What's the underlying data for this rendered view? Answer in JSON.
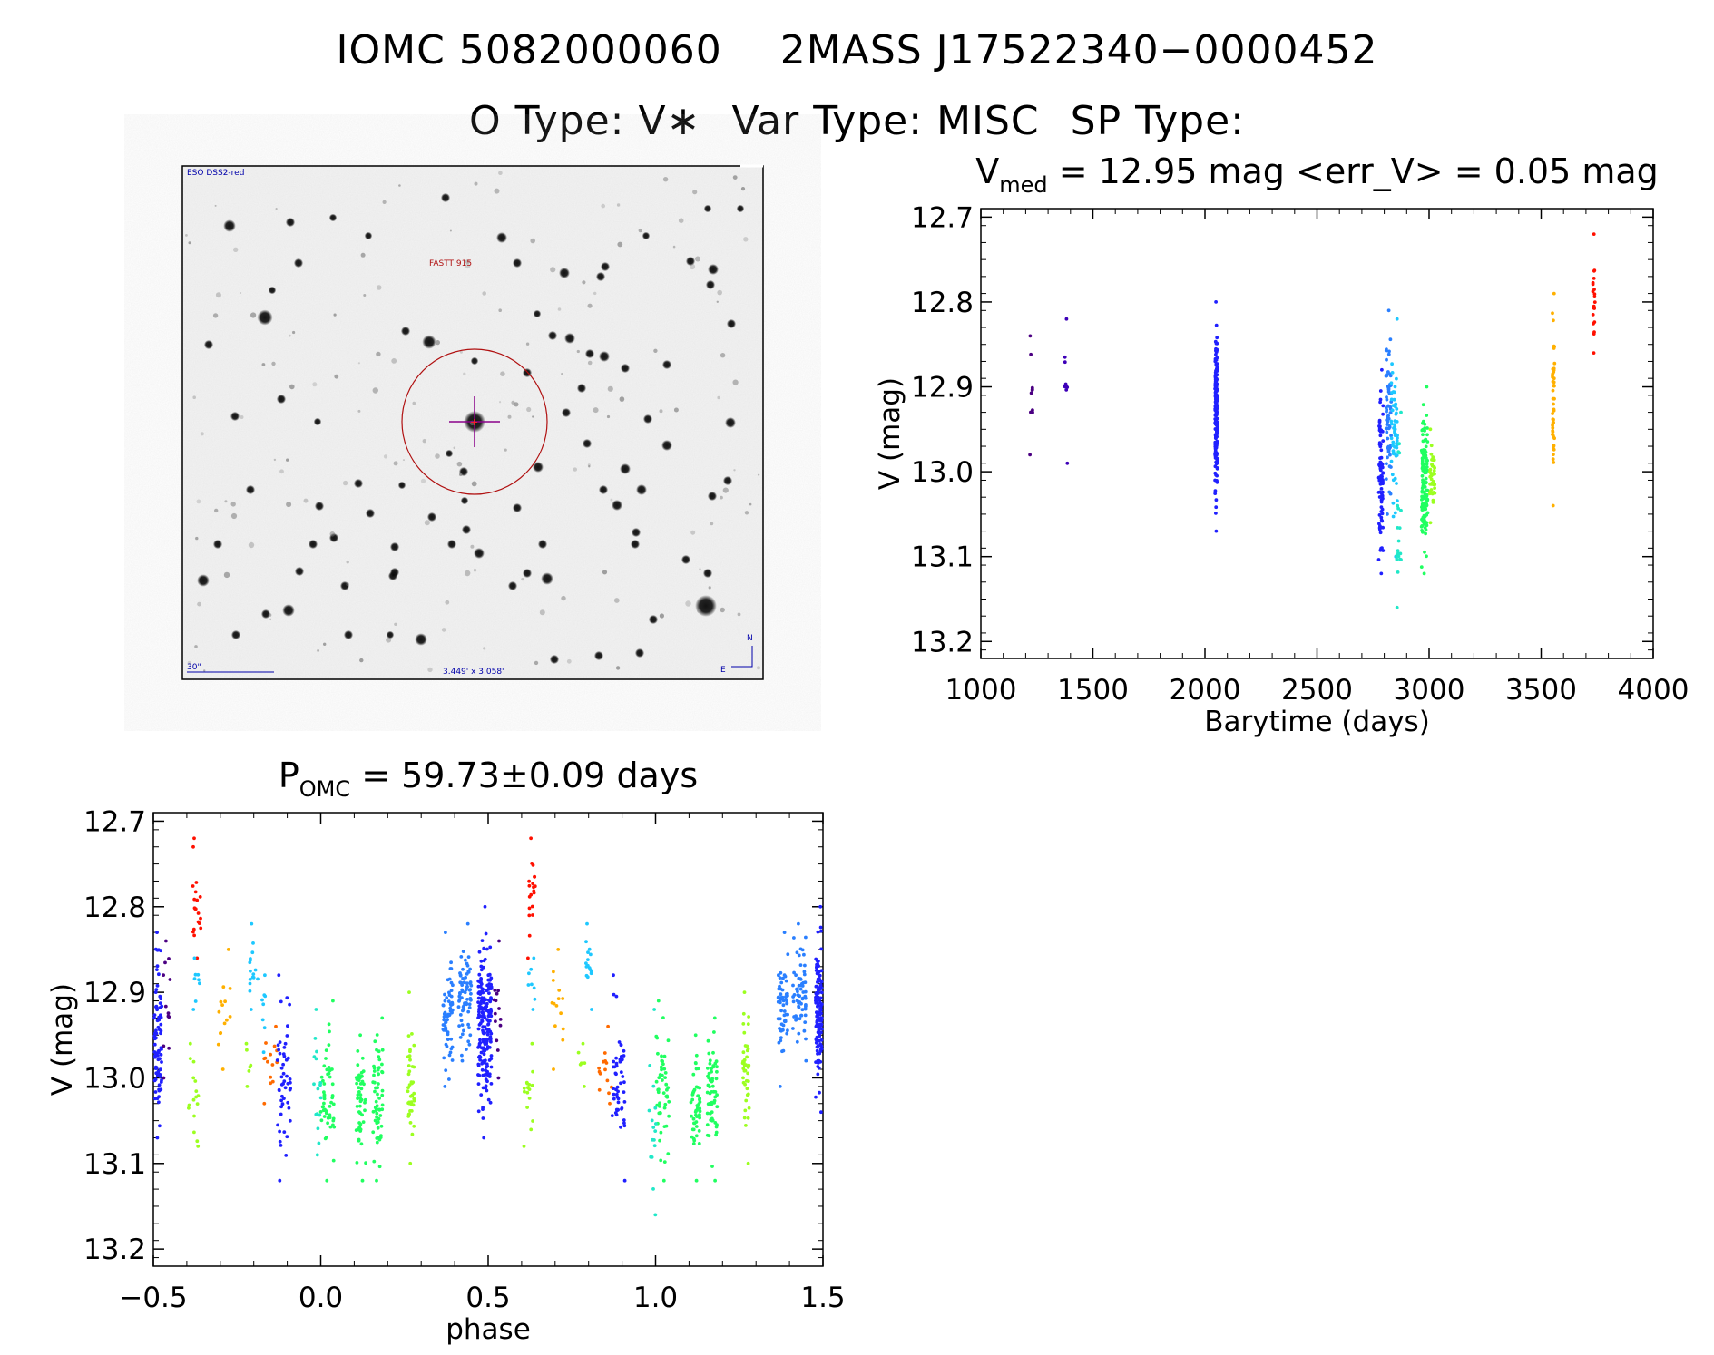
{
  "header": {
    "title_id": "IOMC 5082000060",
    "title_2mass": "2MASS J17522340−0000452",
    "otype": "O Type: V∗",
    "vartype": "Var Type: MISC",
    "sptype": "SP Type:"
  },
  "finder": {
    "survey_label": "ESO DSS2-red",
    "target_label": "FASTT 915",
    "scale_label": "30\"",
    "fov_label": "3.449' x 3.058'",
    "north_label": "N",
    "east_label": "E"
  },
  "colors": {
    "ramp": [
      "#4b0082",
      "#3d00b8",
      "#2020ff",
      "#2a7fff",
      "#1ec8ff",
      "#20e8c8",
      "#20ff60",
      "#9cff20",
      "#ffb000",
      "#ff6a00",
      "#ff1000"
    ],
    "circle": "#b01010",
    "crosshair": "#8a008a",
    "label_blue": "#0000aa"
  },
  "chart_data": [
    {
      "type": "scatter",
      "title_main": "V",
      "title_sub": "med",
      "title_rest": " =  12.95 mag <err_V> =  0.05 mag",
      "xlabel": "Barytime (days)",
      "ylabel": "V (mag)",
      "xlim": [
        1000,
        4000
      ],
      "ylim": [
        13.22,
        12.69
      ],
      "xticks": [
        1000,
        1500,
        2000,
        2500,
        3000,
        3500,
        4000
      ],
      "xticklabels": [
        "1000",
        "1500",
        "2000",
        "2500",
        "3000",
        "3500",
        "4000"
      ],
      "yticks": [
        12.7,
        12.8,
        12.9,
        13.0,
        13.1,
        13.2
      ],
      "yticklabels": [
        "12.7",
        "12.8",
        "12.9",
        "13.0",
        "13.1",
        "13.2"
      ],
      "groups": [
        {
          "x": 1225,
          "xw": 6,
          "ymin": 12.84,
          "ymax": 12.98,
          "n": 10,
          "c": 0
        },
        {
          "x": 1380,
          "xw": 6,
          "ymin": 12.82,
          "ymax": 12.99,
          "n": 10,
          "c": 1
        },
        {
          "x": 2050,
          "xw": 5,
          "ymin": 12.8,
          "ymax": 13.07,
          "n": 200,
          "c": 2
        },
        {
          "x": 2785,
          "xw": 10,
          "ymin": 12.88,
          "ymax": 13.12,
          "n": 90,
          "c": 2
        },
        {
          "x": 2820,
          "xw": 12,
          "ymin": 12.81,
          "ymax": 13.05,
          "n": 70,
          "c": 3
        },
        {
          "x": 2845,
          "xw": 14,
          "ymin": 12.82,
          "ymax": 13.1,
          "n": 60,
          "c": 4
        },
        {
          "x": 2865,
          "xw": 10,
          "ymin": 12.93,
          "ymax": 13.16,
          "n": 20,
          "c": 5
        },
        {
          "x": 2980,
          "xw": 14,
          "ymin": 12.9,
          "ymax": 13.12,
          "n": 120,
          "c": 6
        },
        {
          "x": 3015,
          "xw": 12,
          "ymin": 12.95,
          "ymax": 13.06,
          "n": 40,
          "c": 7
        },
        {
          "x": 3555,
          "xw": 5,
          "ymin": 12.79,
          "ymax": 13.04,
          "n": 50,
          "c": 8
        },
        {
          "x": 3735,
          "xw": 5,
          "ymin": 12.72,
          "ymax": 12.86,
          "n": 20,
          "c": 10
        }
      ]
    },
    {
      "type": "scatter",
      "title_main": "P",
      "title_sub": "OMC",
      "title_rest": " =  59.73±0.09 days",
      "xlabel": "phase",
      "ylabel": "V (mag)",
      "xlim": [
        -0.5,
        1.5
      ],
      "ylim": [
        13.22,
        12.69
      ],
      "xticks": [
        -0.5,
        0.0,
        0.5,
        1.0,
        1.5
      ],
      "xticklabels": [
        "−0.5",
        "0.0",
        "0.5",
        "1.0",
        "1.5"
      ],
      "yticks": [
        12.7,
        12.8,
        12.9,
        13.0,
        13.1,
        13.2
      ],
      "yticklabels": [
        "12.7",
        "12.8",
        "12.9",
        "13.0",
        "13.1",
        "13.2"
      ],
      "groups": [
        {
          "x": -0.49,
          "xw": 0.015,
          "ymin": 12.83,
          "ymax": 13.07,
          "n": 110,
          "c": 2
        },
        {
          "x": -0.46,
          "xw": 0.01,
          "ymin": 12.84,
          "ymax": 13.0,
          "n": 12,
          "c": 0
        },
        {
          "x": -0.37,
          "xw": 0.012,
          "ymin": 12.72,
          "ymax": 12.86,
          "n": 20,
          "c": 10
        },
        {
          "x": -0.37,
          "xw": 0.012,
          "ymin": 12.86,
          "ymax": 12.92,
          "n": 8,
          "c": 4
        },
        {
          "x": -0.38,
          "xw": 0.015,
          "ymin": 12.96,
          "ymax": 13.08,
          "n": 16,
          "c": 7
        },
        {
          "x": -0.29,
          "xw": 0.02,
          "ymin": 12.85,
          "ymax": 12.99,
          "n": 14,
          "c": 8
        },
        {
          "x": -0.2,
          "xw": 0.012,
          "ymin": 12.82,
          "ymax": 12.92,
          "n": 16,
          "c": 4
        },
        {
          "x": -0.22,
          "xw": 0.012,
          "ymin": 12.96,
          "ymax": 13.01,
          "n": 6,
          "c": 7
        },
        {
          "x": -0.17,
          "xw": 0.006,
          "ymin": 12.88,
          "ymax": 12.97,
          "n": 8,
          "c": 4
        },
        {
          "x": -0.15,
          "xw": 0.02,
          "ymin": 12.94,
          "ymax": 13.03,
          "n": 14,
          "c": 9
        },
        {
          "x": -0.11,
          "xw": 0.02,
          "ymin": 12.88,
          "ymax": 13.12,
          "n": 50,
          "c": 2
        },
        {
          "x": 0.02,
          "xw": 0.02,
          "ymin": 12.91,
          "ymax": 13.12,
          "n": 50,
          "c": 6
        },
        {
          "x": -0.01,
          "xw": 0.012,
          "ymin": 12.92,
          "ymax": 13.09,
          "n": 16,
          "c": 5
        },
        {
          "x": 0.12,
          "xw": 0.015,
          "ymin": 12.95,
          "ymax": 13.12,
          "n": 50,
          "c": 6
        },
        {
          "x": 0.17,
          "xw": 0.015,
          "ymin": 12.93,
          "ymax": 13.12,
          "n": 60,
          "c": 6
        },
        {
          "x": 0.27,
          "xw": 0.01,
          "ymin": 12.9,
          "ymax": 13.1,
          "n": 40,
          "c": 7
        },
        {
          "x": 0.38,
          "xw": 0.015,
          "ymin": 12.83,
          "ymax": 13.01,
          "n": 60,
          "c": 3
        },
        {
          "x": 0.43,
          "xw": 0.02,
          "ymin": 12.82,
          "ymax": 12.98,
          "n": 70,
          "c": 3
        },
        {
          "x": 0.49,
          "xw": 0.02,
          "ymin": 12.8,
          "ymax": 13.07,
          "n": 200,
          "c": 2
        },
        {
          "x": 0.53,
          "xw": 0.012,
          "ymin": 12.84,
          "ymax": 13.0,
          "n": 14,
          "c": 0
        },
        {
          "x": 0.63,
          "xw": 0.012,
          "ymin": 12.72,
          "ymax": 12.86,
          "n": 20,
          "c": 10
        },
        {
          "x": 0.63,
          "xw": 0.012,
          "ymin": 12.86,
          "ymax": 12.92,
          "n": 8,
          "c": 4
        },
        {
          "x": 0.62,
          "xw": 0.015,
          "ymin": 12.96,
          "ymax": 13.08,
          "n": 16,
          "c": 7
        },
        {
          "x": 0.71,
          "xw": 0.02,
          "ymin": 12.85,
          "ymax": 12.99,
          "n": 14,
          "c": 8
        },
        {
          "x": 0.8,
          "xw": 0.012,
          "ymin": 12.82,
          "ymax": 12.92,
          "n": 16,
          "c": 4
        },
        {
          "x": 0.78,
          "xw": 0.012,
          "ymin": 12.96,
          "ymax": 13.01,
          "n": 6,
          "c": 7
        },
        {
          "x": 0.85,
          "xw": 0.02,
          "ymin": 12.94,
          "ymax": 13.03,
          "n": 14,
          "c": 9
        },
        {
          "x": 0.89,
          "xw": 0.02,
          "ymin": 12.88,
          "ymax": 13.12,
          "n": 50,
          "c": 2
        },
        {
          "x": 1.02,
          "xw": 0.02,
          "ymin": 12.91,
          "ymax": 13.12,
          "n": 50,
          "c": 6
        },
        {
          "x": 0.99,
          "xw": 0.012,
          "ymin": 12.92,
          "ymax": 13.16,
          "n": 16,
          "c": 5
        },
        {
          "x": 1.12,
          "xw": 0.015,
          "ymin": 12.95,
          "ymax": 13.12,
          "n": 50,
          "c": 6
        },
        {
          "x": 1.17,
          "xw": 0.015,
          "ymin": 12.93,
          "ymax": 13.12,
          "n": 60,
          "c": 6
        },
        {
          "x": 1.27,
          "xw": 0.01,
          "ymin": 12.9,
          "ymax": 13.1,
          "n": 40,
          "c": 7
        },
        {
          "x": 1.38,
          "xw": 0.015,
          "ymin": 12.83,
          "ymax": 13.01,
          "n": 60,
          "c": 3
        },
        {
          "x": 1.43,
          "xw": 0.02,
          "ymin": 12.82,
          "ymax": 12.98,
          "n": 70,
          "c": 3
        },
        {
          "x": 1.49,
          "xw": 0.012,
          "ymin": 12.8,
          "ymax": 13.04,
          "n": 150,
          "c": 2
        }
      ]
    }
  ]
}
